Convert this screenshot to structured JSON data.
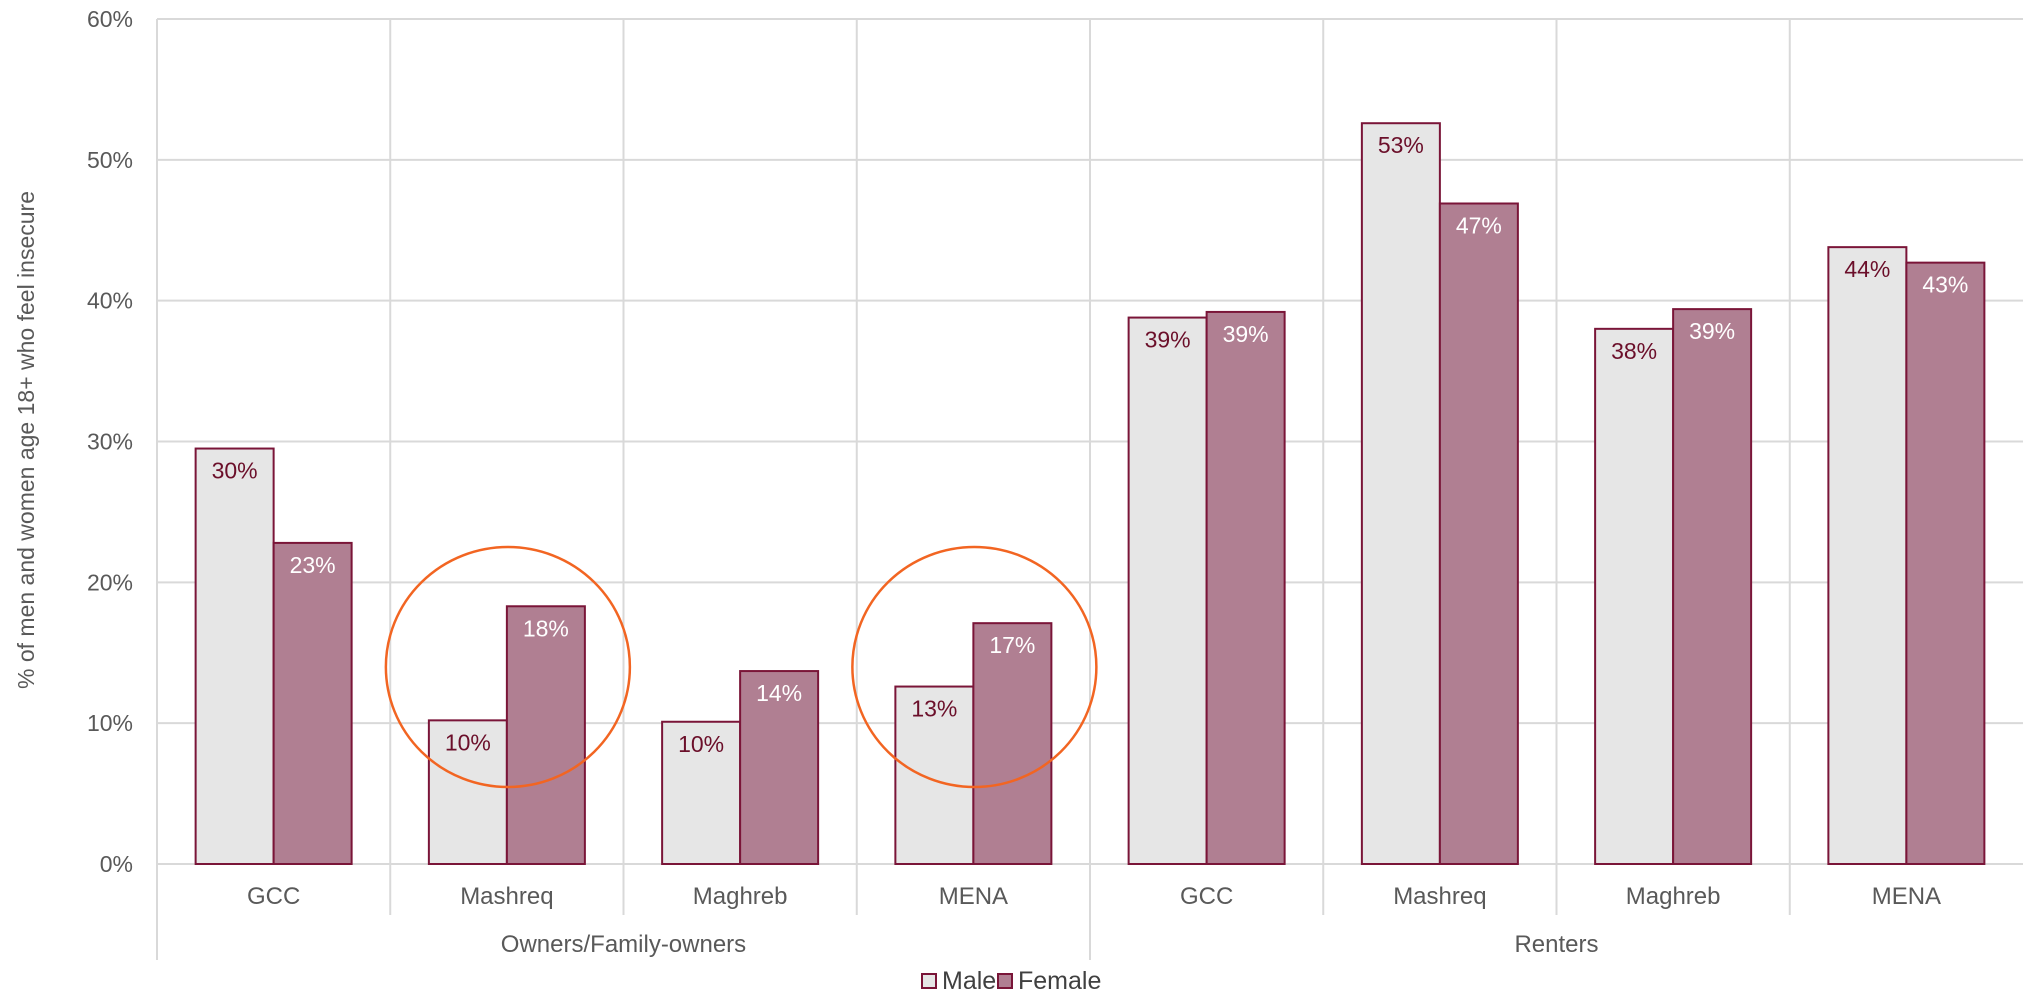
{
  "chart_data": {
    "type": "bar",
    "ylabel": "% of men and women age 18+ who feel insecure",
    "ylim": [
      0,
      60
    ],
    "yticks": [
      0,
      10,
      20,
      30,
      40,
      50,
      60
    ],
    "ytick_labels": [
      "0%",
      "10%",
      "20%",
      "30%",
      "40%",
      "50%",
      "60%"
    ],
    "grid": true,
    "legend_position": "bottom",
    "groups": [
      {
        "label": "Owners/Family-owners",
        "categories": [
          "GCC",
          "Mashreq",
          "Maghreb",
          "MENA"
        ]
      },
      {
        "label": "Renters",
        "categories": [
          "GCC",
          "Mashreq",
          "Maghreb",
          "MENA"
        ]
      }
    ],
    "categories": [
      "GCC",
      "Mashreq",
      "Maghreb",
      "MENA",
      "GCC",
      "Mashreq",
      "Maghreb",
      "MENA"
    ],
    "series": [
      {
        "name": "Male",
        "values": [
          29.5,
          10.2,
          10.1,
          12.6,
          38.8,
          52.6,
          38.0,
          43.8
        ],
        "labels": [
          "30%",
          "10%",
          "10%",
          "13%",
          "39%",
          "53%",
          "38%",
          "44%"
        ],
        "color": "#e6e6e6",
        "label_color": "#6b0f2a"
      },
      {
        "name": "Female",
        "values": [
          22.8,
          18.3,
          13.7,
          17.1,
          39.2,
          46.9,
          39.4,
          42.7
        ],
        "labels": [
          "23%",
          "18%",
          "14%",
          "17%",
          "39%",
          "47%",
          "39%",
          "43%"
        ],
        "color": "#b07f92",
        "label_color": "#ffffff"
      }
    ],
    "bar_outline_color": "#7a1538",
    "highlighted_categories": [
      1,
      3
    ],
    "highlight_color": "#f26522"
  }
}
